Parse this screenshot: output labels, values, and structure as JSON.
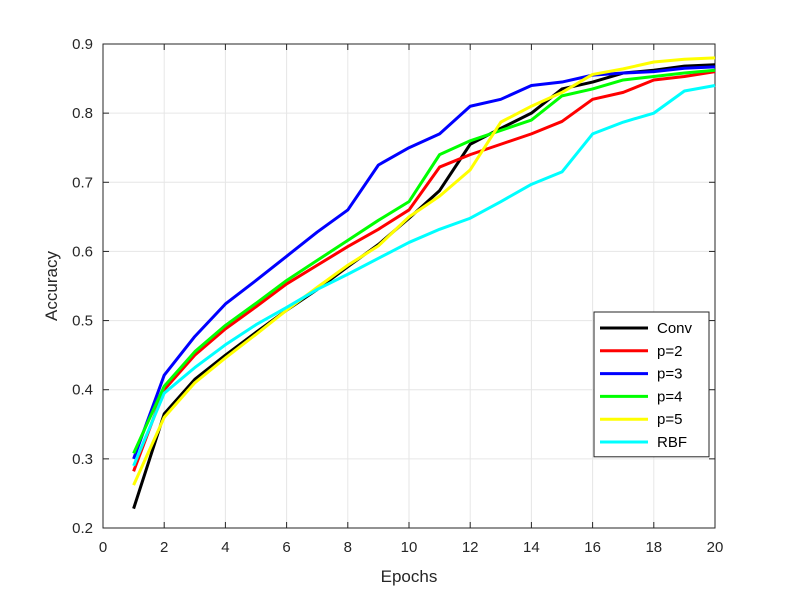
{
  "chart_data": {
    "type": "line",
    "title": "",
    "xlabel": "Epochs",
    "ylabel": "Accuracy",
    "xlim": [
      0,
      20
    ],
    "ylim": [
      0.2,
      0.9
    ],
    "xticks": [
      0,
      2,
      4,
      6,
      8,
      10,
      12,
      14,
      16,
      18,
      20
    ],
    "xtick_labels": [
      "0",
      "2",
      "4",
      "6",
      "8",
      "10",
      "12",
      "14",
      "16",
      "18",
      "20"
    ],
    "yticks": [
      0.2,
      0.3,
      0.4,
      0.5,
      0.6,
      0.7,
      0.8,
      0.9
    ],
    "ytick_labels": [
      "0.2",
      "0.3",
      "0.4",
      "0.5",
      "0.6",
      "0.7",
      "0.8",
      "0.9"
    ],
    "grid": true,
    "legend_position": "right-lower",
    "x": [
      1,
      2,
      3,
      4,
      5,
      6,
      7,
      8,
      9,
      10,
      11,
      12,
      13,
      14,
      15,
      16,
      17,
      18,
      19,
      20
    ],
    "series": [
      {
        "name": "Conv",
        "color": "#000000",
        "values": [
          0.228,
          0.365,
          0.415,
          0.45,
          0.483,
          0.515,
          0.545,
          0.578,
          0.61,
          0.648,
          0.688,
          0.755,
          0.778,
          0.8,
          0.835,
          0.845,
          0.858,
          0.862,
          0.868,
          0.87
        ]
      },
      {
        "name": "p=2",
        "color": "#ff0000",
        "values": [
          0.282,
          0.4,
          0.45,
          0.488,
          0.52,
          0.553,
          0.58,
          0.607,
          0.632,
          0.66,
          0.722,
          0.74,
          0.755,
          0.77,
          0.788,
          0.82,
          0.83,
          0.848,
          0.853,
          0.86
        ]
      },
      {
        "name": "p=3",
        "color": "#0000ff",
        "values": [
          0.3,
          0.421,
          0.477,
          0.524,
          0.558,
          0.593,
          0.628,
          0.66,
          0.725,
          0.75,
          0.77,
          0.81,
          0.82,
          0.84,
          0.845,
          0.855,
          0.858,
          0.86,
          0.865,
          0.867
        ]
      },
      {
        "name": "p=4",
        "color": "#00ff00",
        "values": [
          0.308,
          0.405,
          0.455,
          0.493,
          0.525,
          0.558,
          0.587,
          0.616,
          0.645,
          0.672,
          0.74,
          0.76,
          0.775,
          0.79,
          0.825,
          0.835,
          0.848,
          0.853,
          0.858,
          0.862
        ]
      },
      {
        "name": "p=5",
        "color": "#ffff00",
        "values": [
          0.262,
          0.36,
          0.41,
          0.446,
          0.48,
          0.515,
          0.548,
          0.58,
          0.608,
          0.65,
          0.68,
          0.718,
          0.787,
          0.81,
          0.83,
          0.856,
          0.864,
          0.874,
          0.878,
          0.88
        ]
      },
      {
        "name": "RBF",
        "color": "#00ffff",
        "values": [
          0.29,
          0.395,
          0.432,
          0.465,
          0.494,
          0.519,
          0.545,
          0.567,
          0.59,
          0.613,
          0.632,
          0.648,
          0.672,
          0.697,
          0.715,
          0.77,
          0.787,
          0.8,
          0.832,
          0.84
        ]
      }
    ]
  }
}
